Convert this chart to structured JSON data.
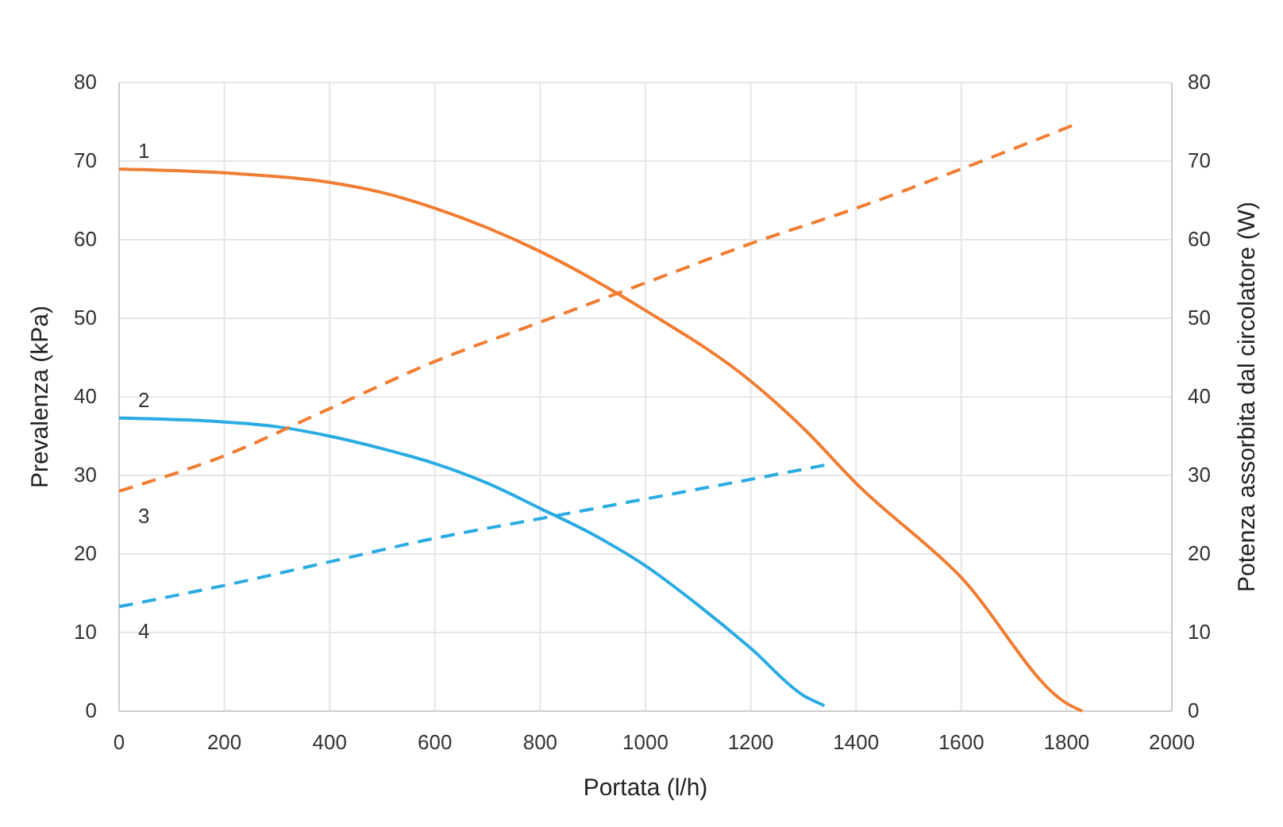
{
  "chart_data": {
    "type": "line",
    "xlabel": "Portata (l/h)",
    "ylabel": "Prevalenza (kPa)",
    "y2label": "Potenza assorbita dal circolatore (W)",
    "xlim": [
      0,
      2000
    ],
    "xticks": [
      0,
      200,
      400,
      600,
      800,
      1000,
      1200,
      1400,
      1600,
      1800,
      2000
    ],
    "ylim": [
      0,
      80
    ],
    "yticks": [
      0,
      10,
      20,
      30,
      40,
      50,
      60,
      70,
      80
    ],
    "y2lim": [
      0,
      80
    ],
    "y2ticks": [
      0,
      10,
      20,
      30,
      40,
      50,
      60,
      70,
      80
    ],
    "grid": true,
    "series": [
      {
        "name": "1",
        "color": "#f07d32",
        "line_style": "solid",
        "x": [
          0,
          200,
          400,
          500,
          600,
          800,
          1000,
          1200,
          1300,
          1400,
          1600,
          1800,
          1830
        ],
        "values": [
          69,
          68.5,
          67.3,
          66,
          64,
          58.5,
          51,
          42,
          36,
          29,
          17,
          1,
          0
        ]
      },
      {
        "name": "2",
        "color": "#2aabe2",
        "line_style": "solid",
        "x": [
          0,
          200,
          300,
          400,
          500,
          600,
          700,
          800,
          900,
          1000,
          1100,
          1200,
          1300,
          1340
        ],
        "values": [
          37.3,
          36.8,
          36.2,
          35,
          33.4,
          31.5,
          29,
          25.8,
          22.5,
          18.5,
          13.5,
          8,
          2,
          0.7
        ]
      },
      {
        "name": "3",
        "color": "#f07d32",
        "line_style": "dashed",
        "axis": "y2",
        "x": [
          0,
          200,
          400,
          600,
          800,
          1000,
          1200,
          1400,
          1600,
          1810
        ],
        "values": [
          28,
          32.5,
          38.5,
          44.5,
          49.5,
          54.5,
          59.5,
          64,
          69,
          74.5
        ]
      },
      {
        "name": "4",
        "color": "#2aabe2",
        "line_style": "dashed",
        "axis": "y2",
        "x": [
          0,
          200,
          400,
          600,
          800,
          1000,
          1200,
          1340
        ],
        "values": [
          13.3,
          16,
          19,
          22,
          24.5,
          27,
          29.5,
          31.3
        ]
      }
    ]
  }
}
